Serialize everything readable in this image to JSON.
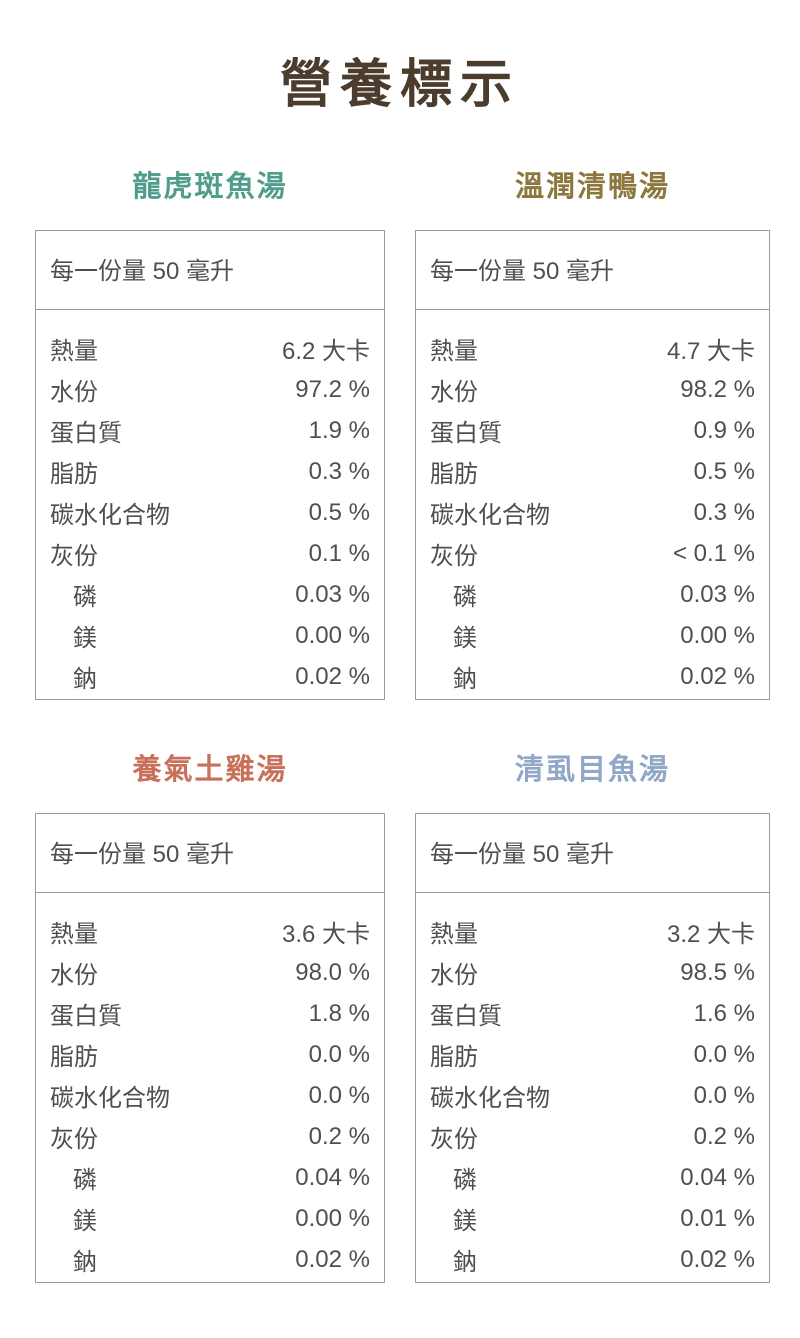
{
  "title": "營養標示",
  "sections": [
    {
      "title": "龍虎斑魚湯",
      "title_color": "#4f9e8d",
      "serving": "每一份量 50 毫升",
      "rows": [
        {
          "label": "熱量",
          "value": "6.2 大卡"
        },
        {
          "label": "水份",
          "value": "97.2 %"
        },
        {
          "label": "蛋白質",
          "value": "1.9 %"
        },
        {
          "label": "脂肪",
          "value": "0.3 %"
        },
        {
          "label": "碳水化合物",
          "value": "0.5 %"
        },
        {
          "label": "灰份",
          "value": "0.1 %"
        },
        {
          "label": "磷",
          "value": "0.03 %"
        },
        {
          "label": "鎂",
          "value": "0.00 %"
        },
        {
          "label": "鈉",
          "value": "0.02 %"
        }
      ]
    },
    {
      "title": "溫潤清鴨湯",
      "title_color": "#8c773e",
      "serving": "每一份量 50 毫升",
      "rows": [
        {
          "label": "熱量",
          "value": "4.7 大卡"
        },
        {
          "label": "水份",
          "value": "98.2 %"
        },
        {
          "label": "蛋白質",
          "value": "0.9 %"
        },
        {
          "label": "脂肪",
          "value": "0.5 %"
        },
        {
          "label": "碳水化合物",
          "value": "0.3 %"
        },
        {
          "label": "灰份",
          "value": "< 0.1 %"
        },
        {
          "label": "磷",
          "value": "0.03 %"
        },
        {
          "label": "鎂",
          "value": "0.00 %"
        },
        {
          "label": "鈉",
          "value": "0.02 %"
        }
      ]
    },
    {
      "title": "養氣土雞湯",
      "title_color": "#c9705b",
      "serving": "每一份量 50 毫升",
      "rows": [
        {
          "label": "熱量",
          "value": "3.6 大卡"
        },
        {
          "label": "水份",
          "value": "98.0 %"
        },
        {
          "label": "蛋白質",
          "value": "1.8 %"
        },
        {
          "label": "脂肪",
          "value": "0.0 %"
        },
        {
          "label": "碳水化合物",
          "value": "0.0 %"
        },
        {
          "label": "灰份",
          "value": "0.2 %"
        },
        {
          "label": "磷",
          "value": "0.04 %"
        },
        {
          "label": "鎂",
          "value": "0.00 %"
        },
        {
          "label": "鈉",
          "value": "0.02 %"
        }
      ]
    },
    {
      "title": "清虱目魚湯",
      "title_color": "#90a7c6",
      "serving": "每一份量 50 毫升",
      "rows": [
        {
          "label": "熱量",
          "value": "3.2 大卡"
        },
        {
          "label": "水份",
          "value": "98.5 %"
        },
        {
          "label": "蛋白質",
          "value": "1.6 %"
        },
        {
          "label": "脂肪",
          "value": "0.0 %"
        },
        {
          "label": "碳水化合物",
          "value": "0.0 %"
        },
        {
          "label": "灰份",
          "value": "0.2 %"
        },
        {
          "label": "磷",
          "value": "0.04 %"
        },
        {
          "label": "鎂",
          "value": "0.01 %"
        },
        {
          "label": "鈉",
          "value": "0.02 %"
        }
      ]
    }
  ]
}
